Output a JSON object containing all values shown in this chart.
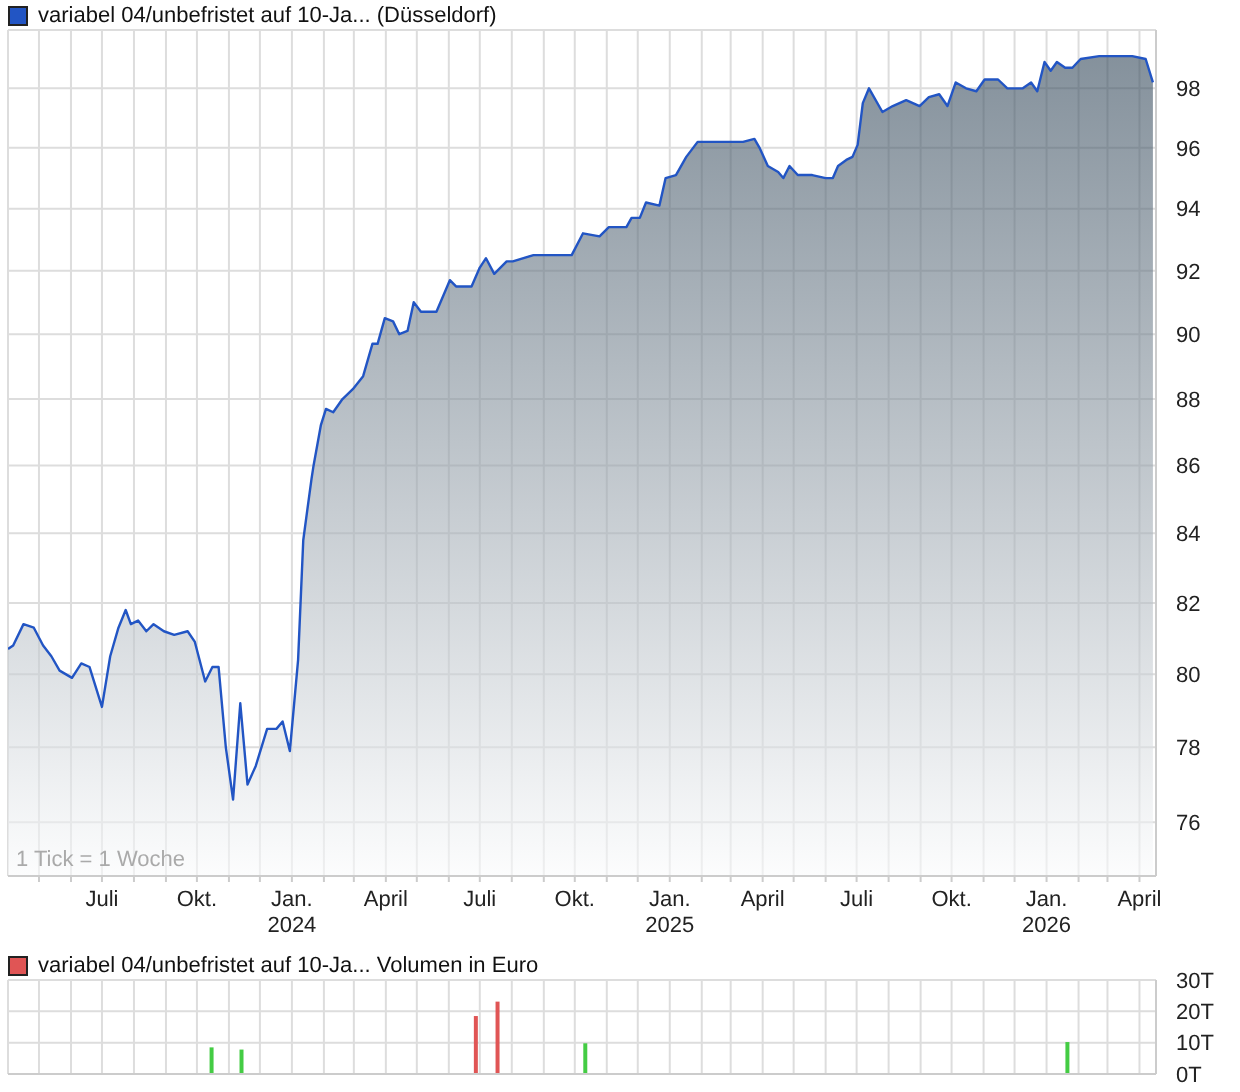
{
  "chart_data": [
    {
      "type": "area",
      "log": true,
      "grid": true,
      "legend": "top left",
      "annotations": [
        "1 Tick = 1 Woche"
      ],
      "xlim": [
        "2023-04-01",
        "2026-04-17"
      ],
      "xticks": [
        {
          "value": "2023-05-01",
          "label": null
        },
        {
          "value": "2023-06-01",
          "label": null
        },
        {
          "value": "2023-07-01",
          "label": "Juli"
        },
        {
          "value": "2023-08-01",
          "label": null
        },
        {
          "value": "2023-09-01",
          "label": null
        },
        {
          "value": "2023-10-01",
          "label": "Okt."
        },
        {
          "value": "2023-11-01",
          "label": null
        },
        {
          "value": "2023-12-01",
          "label": null
        },
        {
          "value": "2024-01-01",
          "label": "Jan.\n2024"
        },
        {
          "value": "2024-02-01",
          "label": null
        },
        {
          "value": "2024-03-01",
          "label": null
        },
        {
          "value": "2024-04-01",
          "label": "April"
        },
        {
          "value": "2024-05-01",
          "label": null
        },
        {
          "value": "2024-06-01",
          "label": null
        },
        {
          "value": "2024-07-01",
          "label": "Juli"
        },
        {
          "value": "2024-08-01",
          "label": null
        },
        {
          "value": "2024-09-01",
          "label": null
        },
        {
          "value": "2024-10-01",
          "label": "Okt."
        },
        {
          "value": "2024-11-01",
          "label": null
        },
        {
          "value": "2024-12-01",
          "label": null
        },
        {
          "value": "2025-01-01",
          "label": "Jan.\n2025"
        },
        {
          "value": "2025-02-01",
          "label": null
        },
        {
          "value": "2025-03-01",
          "label": null
        },
        {
          "value": "2025-04-01",
          "label": "April"
        },
        {
          "value": "2025-05-01",
          "label": null
        },
        {
          "value": "2025-06-01",
          "label": null
        },
        {
          "value": "2025-07-01",
          "label": "Juli"
        },
        {
          "value": "2025-08-01",
          "label": null
        },
        {
          "value": "2025-09-01",
          "label": null
        },
        {
          "value": "2025-10-01",
          "label": "Okt."
        },
        {
          "value": "2025-11-01",
          "label": null
        },
        {
          "value": "2025-12-01",
          "label": null
        },
        {
          "value": "2026-01-01",
          "label": "Jan.\n2026"
        },
        {
          "value": "2026-02-01",
          "label": null
        },
        {
          "value": "2026-03-01",
          "label": null
        },
        {
          "value": "2026-04-01",
          "label": "April"
        }
      ],
      "ylim": [
        74.6,
        100
      ],
      "yticks": [
        76,
        78,
        80,
        82,
        84,
        86,
        88,
        90,
        92,
        94,
        96,
        98
      ],
      "x": [
        "2023-04-01",
        "2023-04-06",
        "2023-04-16",
        "2023-04-26",
        "2023-05-05",
        "2023-05-13",
        "2023-05-21",
        "2023-06-02",
        "2023-06-11",
        "2023-06-19",
        "2023-07-01",
        "2023-07-09",
        "2023-07-17",
        "2023-07-24",
        "2023-07-29",
        "2023-08-05",
        "2023-08-13",
        "2023-08-20",
        "2023-08-30",
        "2023-09-09",
        "2023-09-22",
        "2023-09-29",
        "2023-10-09",
        "2023-10-16",
        "2023-10-22",
        "2023-10-29",
        "2023-11-05",
        "2023-11-12",
        "2023-11-19",
        "2023-11-27",
        "2023-12-08",
        "2023-12-17",
        "2023-12-23",
        "2023-12-30",
        "2024-01-07",
        "2024-01-12",
        "2024-01-16",
        "2024-01-20",
        "2024-01-22",
        "2024-01-29",
        "2024-02-03",
        "2024-02-10",
        "2024-02-19",
        "2024-02-29",
        "2024-03-10",
        "2024-03-19",
        "2024-03-24",
        "2024-03-31",
        "2024-04-08",
        "2024-04-14",
        "2024-04-22",
        "2024-04-28",
        "2024-05-05",
        "2024-05-20",
        "2024-06-02",
        "2024-06-08",
        "2024-06-23",
        "2024-07-01",
        "2024-07-07",
        "2024-07-15",
        "2024-07-27",
        "2024-08-02",
        "2024-08-22",
        "2024-09-16",
        "2024-09-28",
        "2024-10-09",
        "2024-10-25",
        "2024-11-03",
        "2024-11-20",
        "2024-11-25",
        "2024-12-03",
        "2024-12-09",
        "2024-12-22",
        "2024-12-28",
        "2025-01-07",
        "2025-01-17",
        "2025-01-28",
        "2025-02-05",
        "2025-02-21",
        "2025-03-13",
        "2025-03-24",
        "2025-03-29",
        "2025-04-06",
        "2025-04-16",
        "2025-04-21",
        "2025-04-27",
        "2025-05-05",
        "2025-05-19",
        "2025-06-01",
        "2025-06-08",
        "2025-06-13",
        "2025-06-21",
        "2025-06-27",
        "2025-07-02",
        "2025-07-07",
        "2025-07-13",
        "2025-07-26",
        "2025-08-05",
        "2025-08-18",
        "2025-08-31",
        "2025-09-09",
        "2025-09-19",
        "2025-09-27",
        "2025-10-05",
        "2025-10-15",
        "2025-10-25",
        "2025-11-02",
        "2025-11-15",
        "2025-11-24",
        "2025-12-09",
        "2025-12-17",
        "2025-12-23",
        "2025-12-30",
        "2026-01-05",
        "2026-01-11",
        "2026-01-19",
        "2026-01-26",
        "2026-02-03",
        "2026-02-21",
        "2026-03-25",
        "2026-04-07",
        "2026-04-14"
      ],
      "series": [
        {
          "name": "variabel 04/unbefristet auf 10-Ja... (Düsseldorf)",
          "color": "#2255c4",
          "values": [
            80.7,
            80.8,
            81.4,
            81.3,
            80.8,
            80.5,
            80.1,
            79.9,
            80.3,
            80.2,
            79.1,
            80.5,
            81.3,
            81.8,
            81.4,
            81.5,
            81.2,
            81.4,
            81.2,
            81.1,
            81.2,
            80.9,
            79.8,
            80.2,
            80.2,
            78.0,
            76.6,
            79.2,
            77.0,
            77.5,
            78.5,
            78.5,
            78.7,
            77.9,
            80.4,
            83.8,
            84.7,
            85.6,
            86.0,
            87.2,
            87.7,
            87.6,
            88.0,
            88.3,
            88.7,
            89.7,
            89.7,
            90.5,
            90.4,
            90.0,
            90.1,
            91.0,
            90.7,
            90.7,
            91.7,
            91.5,
            91.5,
            92.1,
            92.4,
            91.9,
            92.3,
            92.3,
            92.5,
            92.5,
            92.5,
            93.2,
            93.1,
            93.4,
            93.4,
            93.7,
            93.7,
            94.2,
            94.1,
            95.0,
            95.1,
            95.7,
            96.2,
            96.2,
            96.2,
            96.2,
            96.3,
            96.0,
            95.4,
            95.2,
            95.0,
            95.4,
            95.1,
            95.1,
            95.0,
            95.0,
            95.4,
            95.6,
            95.7,
            96.1,
            97.5,
            98.0,
            97.2,
            97.4,
            97.6,
            97.4,
            97.7,
            97.8,
            97.4,
            98.2,
            98.0,
            97.9,
            98.3,
            98.3,
            98.0,
            98.0,
            98.2,
            97.9,
            98.9,
            98.6,
            98.9,
            98.7,
            98.7,
            99.0,
            99.1,
            99.1,
            99.0,
            98.2
          ]
        }
      ]
    },
    {
      "type": "bar",
      "grid": true,
      "legend": "top left",
      "tick_labels": "y",
      "xlim": [
        "2023-04-01",
        "2026-04-17"
      ],
      "xticks": [
        {
          "value": "2023-05-01",
          "label": null
        },
        {
          "value": "2023-06-01",
          "label": null
        },
        {
          "value": "2023-07-01",
          "label": null
        },
        {
          "value": "2023-08-01",
          "label": null
        },
        {
          "value": "2023-09-01",
          "label": null
        },
        {
          "value": "2023-10-01",
          "label": null
        },
        {
          "value": "2023-11-01",
          "label": null
        },
        {
          "value": "2023-12-01",
          "label": null
        },
        {
          "value": "2024-01-01",
          "label": null
        },
        {
          "value": "2024-02-01",
          "label": null
        },
        {
          "value": "2024-03-01",
          "label": null
        },
        {
          "value": "2024-04-01",
          "label": null
        },
        {
          "value": "2024-05-01",
          "label": null
        },
        {
          "value": "2024-06-01",
          "label": null
        },
        {
          "value": "2024-07-01",
          "label": null
        },
        {
          "value": "2024-08-01",
          "label": null
        },
        {
          "value": "2024-09-01",
          "label": null
        },
        {
          "value": "2024-10-01",
          "label": null
        },
        {
          "value": "2024-11-01",
          "label": null
        },
        {
          "value": "2024-12-01",
          "label": null
        },
        {
          "value": "2025-01-01",
          "label": null
        },
        {
          "value": "2025-02-01",
          "label": null
        },
        {
          "value": "2025-03-01",
          "label": null
        },
        {
          "value": "2025-04-01",
          "label": null
        },
        {
          "value": "2025-05-01",
          "label": null
        },
        {
          "value": "2025-06-01",
          "label": null
        },
        {
          "value": "2025-07-01",
          "label": null
        },
        {
          "value": "2025-08-01",
          "label": null
        },
        {
          "value": "2025-09-01",
          "label": null
        },
        {
          "value": "2025-10-01",
          "label": null
        },
        {
          "value": "2025-11-01",
          "label": null
        },
        {
          "value": "2025-12-01",
          "label": null
        },
        {
          "value": "2026-01-01",
          "label": null
        },
        {
          "value": "2026-02-01",
          "label": null
        },
        {
          "value": "2026-03-01",
          "label": null
        },
        {
          "value": "2026-04-01",
          "label": null
        }
      ],
      "ylim": [
        0,
        30
      ],
      "yticks": [
        {
          "value": 0,
          "label": "0T"
        },
        {
          "value": 10,
          "label": "10T"
        },
        {
          "value": 20,
          "label": "20T"
        },
        {
          "value": 30,
          "label": "30T"
        }
      ],
      "x": [
        "2023-10-16",
        "2023-11-14",
        "2024-06-28",
        "2024-07-19",
        "2024-10-12",
        "2026-01-22"
      ],
      "series": [
        {
          "name": "variabel 04/unbefristet auf 10-Ja... Volumen in Euro",
          "color": "#e05555",
          "colors": [
            "#44cc44",
            "#44cc44",
            "#e05555",
            "#e05555",
            "#44cc44",
            "#44cc44"
          ],
          "values": [
            8.5,
            7.8,
            18.5,
            23.1,
            9.8,
            10.2
          ]
        }
      ]
    }
  ]
}
